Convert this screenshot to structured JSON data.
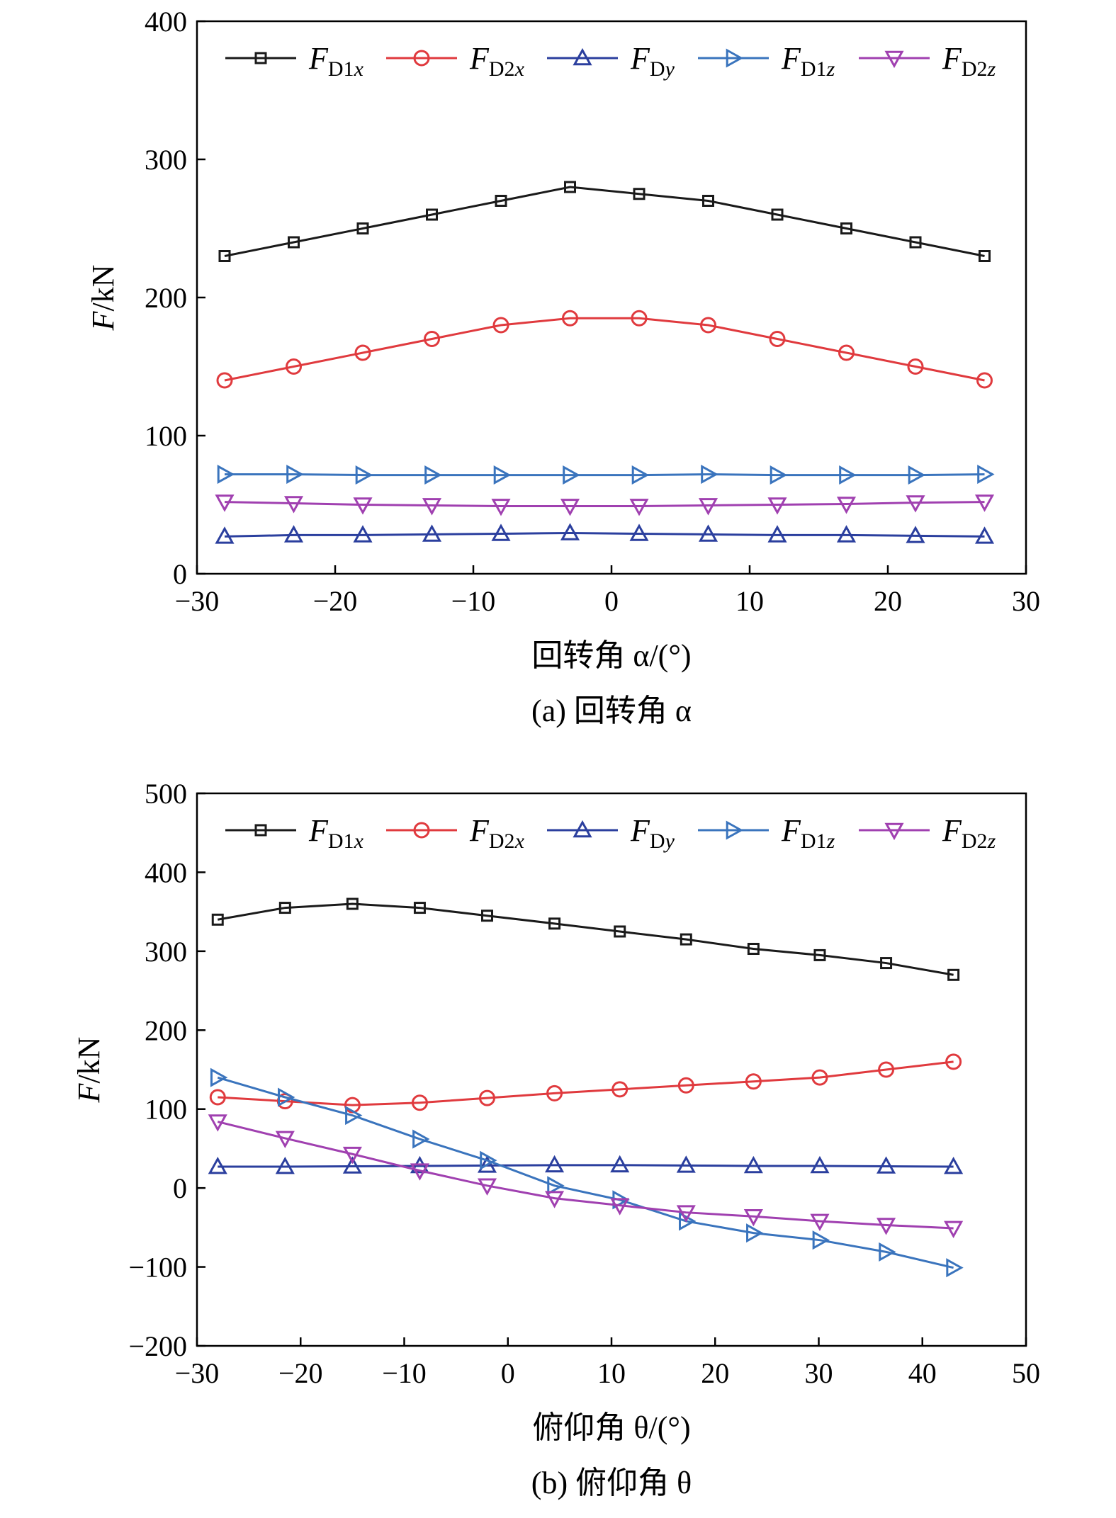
{
  "chart_data": [
    {
      "type": "line",
      "panel": "a",
      "caption": "(a) 回转角 α",
      "xlabel": "回转角 α/(°)",
      "ylabel": "F/kN",
      "xlim": [
        -30,
        30
      ],
      "ylim": [
        0,
        400
      ],
      "xticks": [
        -30,
        -20,
        -10,
        0,
        10,
        20,
        30
      ],
      "yticks": [
        0,
        100,
        200,
        300,
        400
      ],
      "xtick_labels": [
        "−30",
        "−20",
        "−10",
        "0",
        "10",
        "20",
        "30"
      ],
      "ytick_labels": [
        "0",
        "100",
        "200",
        "300",
        "400"
      ],
      "legend_position": "top",
      "x": [
        -28,
        -23,
        -18,
        -13,
        -8,
        -3,
        2,
        7,
        12,
        17,
        22,
        27
      ],
      "series": [
        {
          "name": "FD1x",
          "label_main": "F",
          "label_sub": "D1",
          "label_sub_italic": "x",
          "color": "#1a1a1a",
          "marker": "square",
          "values": [
            230,
            240,
            250,
            260,
            270,
            280,
            275,
            270,
            260,
            250,
            240,
            230
          ]
        },
        {
          "name": "FD2x",
          "label_main": "F",
          "label_sub": "D2",
          "label_sub_italic": "x",
          "color": "#e03a3e",
          "marker": "circle",
          "values": [
            140,
            150,
            160,
            170,
            180,
            185,
            185,
            180,
            170,
            160,
            150,
            140
          ]
        },
        {
          "name": "FDy",
          "label_main": "F",
          "label_sub": "D",
          "label_sub_italic": "y",
          "color": "#2b3f9e",
          "marker": "triangle-up",
          "values": [
            27,
            28,
            28,
            28.5,
            29,
            29.5,
            29,
            28.5,
            28,
            28,
            27.5,
            27
          ]
        },
        {
          "name": "FD1z",
          "label_main": "F",
          "label_sub": "D1",
          "label_sub_italic": "z",
          "color": "#3a74bd",
          "marker": "triangle-right",
          "values": [
            72,
            72,
            71.5,
            71.5,
            71.5,
            71.5,
            71.5,
            72,
            71.5,
            71.5,
            71.5,
            72
          ]
        },
        {
          "name": "FD2z",
          "label_main": "F",
          "label_sub": "D2",
          "label_sub_italic": "z",
          "color": "#a040b0",
          "marker": "triangle-down",
          "values": [
            52,
            51,
            50,
            49.5,
            49,
            49,
            49,
            49.5,
            50,
            50.5,
            51.5,
            52
          ]
        }
      ]
    },
    {
      "type": "line",
      "panel": "b",
      "caption": "(b) 俯仰角 θ",
      "xlabel": "俯仰角 θ/(°)",
      "ylabel": "F/kN",
      "xlim": [
        -30,
        50
      ],
      "ylim": [
        -200,
        500
      ],
      "xticks": [
        -30,
        -20,
        -10,
        0,
        10,
        20,
        30,
        40,
        50
      ],
      "yticks": [
        -200,
        -100,
        0,
        100,
        200,
        300,
        400,
        500
      ],
      "xtick_labels": [
        "−30",
        "−20",
        "−10",
        "0",
        "10",
        "20",
        "30",
        "40",
        "50"
      ],
      "ytick_labels": [
        "−200",
        "−100",
        "0",
        "100",
        "200",
        "300",
        "400",
        "500"
      ],
      "legend_position": "top",
      "x": [
        -28,
        -21.5,
        -15,
        -8.5,
        -2,
        4.5,
        10.8,
        17.2,
        23.7,
        30.1,
        36.5,
        43
      ],
      "series": [
        {
          "name": "FD1x",
          "label_main": "F",
          "label_sub": "D1",
          "label_sub_italic": "x",
          "color": "#1a1a1a",
          "marker": "square",
          "values": [
            340,
            355,
            360,
            355,
            345,
            335,
            325,
            315,
            303,
            295,
            285,
            270
          ]
        },
        {
          "name": "FD2x",
          "label_main": "F",
          "label_sub": "D2",
          "label_sub_italic": "x",
          "color": "#e03a3e",
          "marker": "circle",
          "values": [
            115,
            110,
            105,
            108,
            114,
            120,
            125,
            130,
            135,
            140,
            150,
            160
          ]
        },
        {
          "name": "FDy",
          "label_main": "F",
          "label_sub": "D",
          "label_sub_italic": "y",
          "color": "#2b3f9e",
          "marker": "triangle-up",
          "values": [
            27,
            27,
            27.5,
            28,
            28.5,
            29,
            29,
            28.5,
            28,
            28,
            27.5,
            27
          ]
        },
        {
          "name": "FD1z",
          "label_main": "F",
          "label_sub": "D1",
          "label_sub_italic": "z",
          "color": "#3a74bd",
          "marker": "triangle-right",
          "values": [
            140,
            115,
            92,
            62,
            35,
            3,
            -15,
            -42,
            -57,
            -66,
            -81,
            -101
          ]
        },
        {
          "name": "FD2z",
          "label_main": "F",
          "label_sub": "D2",
          "label_sub_italic": "z",
          "color": "#a040b0",
          "marker": "triangle-down",
          "values": [
            84,
            63,
            43,
            22,
            3,
            -13,
            -22,
            -31,
            -36,
            -42,
            -47,
            -51
          ]
        }
      ]
    }
  ]
}
